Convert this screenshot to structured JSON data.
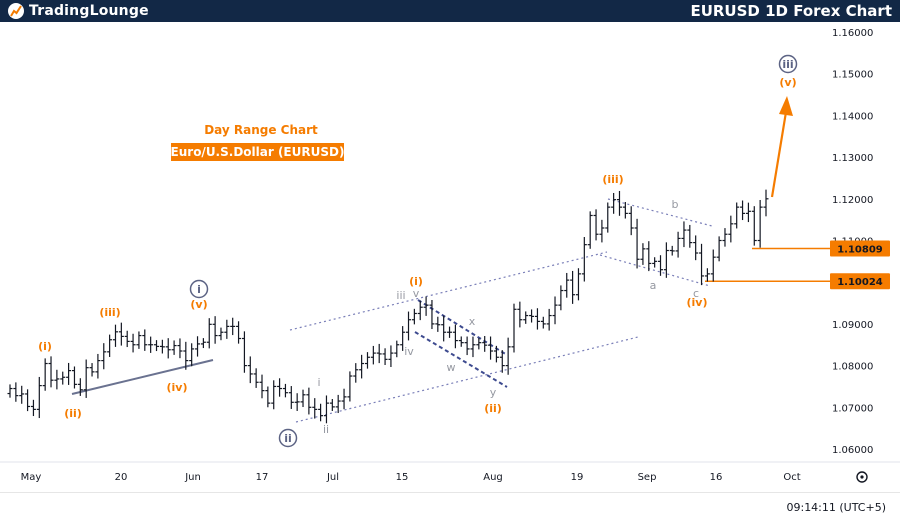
{
  "header": {
    "logo_text": "TradingLounge",
    "chart_title": "EURUSD 1D Forex Chart"
  },
  "footer": {
    "clock": "09:14:11 (UTC+5)"
  },
  "chart_data": {
    "type": "candlestick",
    "title": "Day Range Chart",
    "subtitle": "Euro/U.S.Dollar (EURUSD)",
    "x_ticks": [
      "May",
      "20",
      "Jun",
      "17",
      "Jul",
      "15",
      "Aug",
      "19",
      "Sep",
      "16",
      "Oct"
    ],
    "y_ticks": [
      "1.16000",
      "1.15000",
      "1.14000",
      "1.13000",
      "1.12000",
      "1.11000",
      "1.10000",
      "1.09000",
      "1.08000",
      "1.07000",
      "1.06000"
    ],
    "ylim": [
      1.0575,
      1.1625
    ],
    "price_levels": [
      {
        "label": "1.10809",
        "value": 1.10809,
        "color": "#f57c00"
      },
      {
        "label": "1.10024",
        "value": 1.10024,
        "color": "#f57c00"
      }
    ],
    "close_series": [
      1.0745,
      1.0728,
      1.0732,
      1.0702,
      1.0695,
      1.0752,
      1.0805,
      1.0765,
      1.0768,
      1.0772,
      1.0788,
      1.0755,
      1.0742,
      1.0795,
      1.0785,
      1.0812,
      1.0833,
      1.0862,
      1.0881,
      1.087,
      1.0858,
      1.085,
      1.0872,
      1.085,
      1.085,
      1.0846,
      1.0845,
      1.0838,
      1.0848,
      1.0835,
      1.0812,
      1.084,
      1.0852,
      1.0856,
      1.0899,
      1.0872,
      1.088,
      1.0894,
      1.0894,
      1.0865,
      1.08,
      1.078,
      1.076,
      1.074,
      1.071,
      1.075,
      1.0745,
      1.0735,
      1.0712,
      1.0713,
      1.073,
      1.07,
      1.0695,
      1.068,
      1.071,
      1.0701,
      1.0715,
      1.0725,
      1.0775,
      1.079,
      1.0805,
      1.082,
      1.083,
      1.0828,
      1.0815,
      1.083,
      1.085,
      1.088,
      1.091,
      1.0925,
      1.094,
      1.0945,
      1.09,
      1.0898,
      1.088,
      1.088,
      1.086,
      1.0855,
      1.084,
      1.085,
      1.0855,
      1.0849,
      1.0835,
      1.082,
      1.08,
      1.0845,
      1.0935,
      1.091,
      1.092,
      1.0918,
      1.0906,
      1.09,
      1.092,
      1.0945,
      1.098,
      1.1005,
      1.097,
      1.102,
      1.109,
      1.116,
      1.1115,
      1.113,
      1.118,
      1.1198,
      1.118,
      1.1165,
      1.113,
      1.1055,
      1.108,
      1.1045,
      1.105,
      1.103,
      1.1076,
      1.1075,
      1.1105,
      1.1125,
      1.1095,
      1.107,
      1.1015,
      1.102,
      1.106,
      1.11,
      1.1115,
      1.114,
      1.118,
      1.1165,
      1.117,
      1.11,
      1.118,
      1.12
    ],
    "waves": [
      {
        "label": "(i)",
        "color": "#f57c00"
      },
      {
        "label": "(ii)",
        "color": "#f57c00"
      },
      {
        "label": "(iii)",
        "color": "#f57c00"
      },
      {
        "label": "(iv)",
        "color": "#f57c00"
      },
      {
        "label": "(v)",
        "color": "#f57c00"
      },
      {
        "label": "i",
        "color": "#5c6384",
        "circled": true
      },
      {
        "label": "ii",
        "color": "#5c6384",
        "circled": true
      },
      {
        "label": "i",
        "color": "#9598a1"
      },
      {
        "label": "ii",
        "color": "#9598a1"
      },
      {
        "label": "iii",
        "color": "#9598a1"
      },
      {
        "label": "iv",
        "color": "#9598a1"
      },
      {
        "label": "v",
        "color": "#9598a1"
      },
      {
        "label": "w",
        "color": "#9598a1"
      },
      {
        "label": "x",
        "color": "#9598a1"
      },
      {
        "label": "y",
        "color": "#9598a1"
      },
      {
        "label": "(i)",
        "color": "#f57c00"
      },
      {
        "label": "(ii)",
        "color": "#f57c00"
      },
      {
        "label": "(iii)",
        "color": "#f57c00"
      },
      {
        "label": "a",
        "color": "#9598a1"
      },
      {
        "label": "b",
        "color": "#9598a1"
      },
      {
        "label": "c",
        "color": "#9598a1"
      },
      {
        "label": "(iv)",
        "color": "#f57c00"
      },
      {
        "label": "iii",
        "color": "#5c6384",
        "circled": true
      },
      {
        "label": "(v)",
        "color": "#f57c00"
      }
    ],
    "grid": false,
    "legend": "none"
  }
}
